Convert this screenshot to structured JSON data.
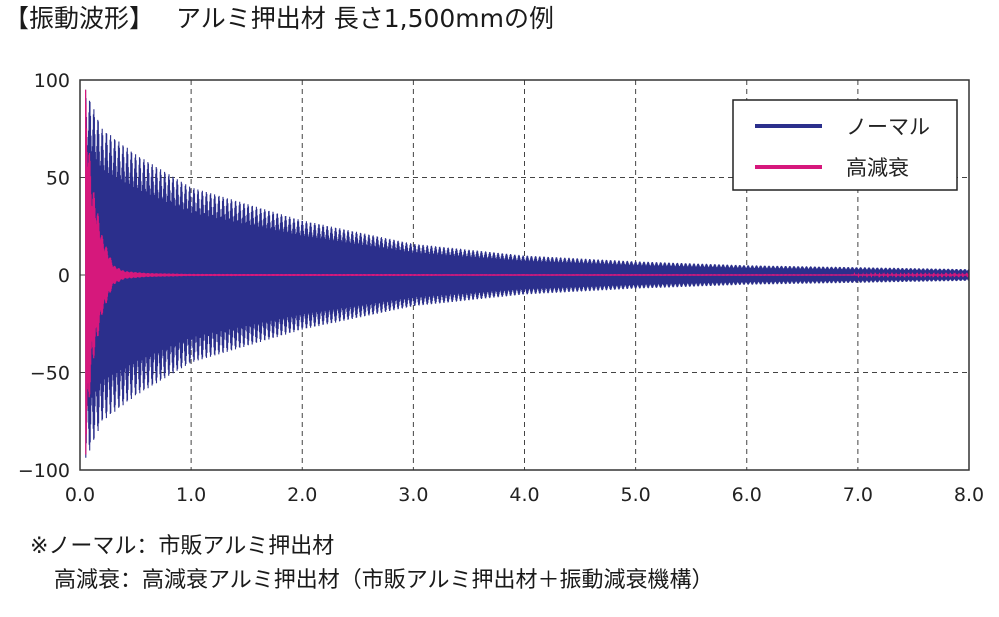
{
  "title": {
    "bracket": "【振動波形】",
    "subtitle": "アルミ押出材 長さ1,500mmの例"
  },
  "chart_data": {
    "type": "line",
    "xlim": [
      0,
      8
    ],
    "ylim": [
      -100,
      100
    ],
    "x_ticks": [
      "0.0",
      "1.0",
      "2.0",
      "3.0",
      "4.0",
      "5.0",
      "6.0",
      "7.0",
      "8.0"
    ],
    "y_ticks": [
      "100",
      "50",
      "0",
      "−50",
      "−100"
    ],
    "grid": true,
    "legend_position": "top-right",
    "series": [
      {
        "name": "ノーマル",
        "color": "#2b2f8c",
        "envelope": {
          "x": [
            0.05,
            0.2,
            0.5,
            1.0,
            2.0,
            3.0,
            4.0,
            5.0,
            6.0,
            7.0,
            8.0
          ],
          "amplitude": [
            95,
            75,
            62,
            45,
            28,
            16,
            10,
            7,
            5,
            4,
            3
          ]
        }
      },
      {
        "name": "高減衰",
        "color": "#d6187c",
        "envelope": {
          "x": [
            0.05,
            0.1,
            0.2,
            0.3,
            0.4,
            0.6,
            1.0,
            8.0
          ],
          "amplitude": [
            95,
            50,
            20,
            5,
            2,
            1,
            0.5,
            0.3
          ]
        }
      }
    ]
  },
  "notes": {
    "line1": "※ノーマル：市販アルミ押出材",
    "line2": "高減衰：高減衰アルミ押出材（市販アルミ押出材＋振動減衰機構）"
  }
}
